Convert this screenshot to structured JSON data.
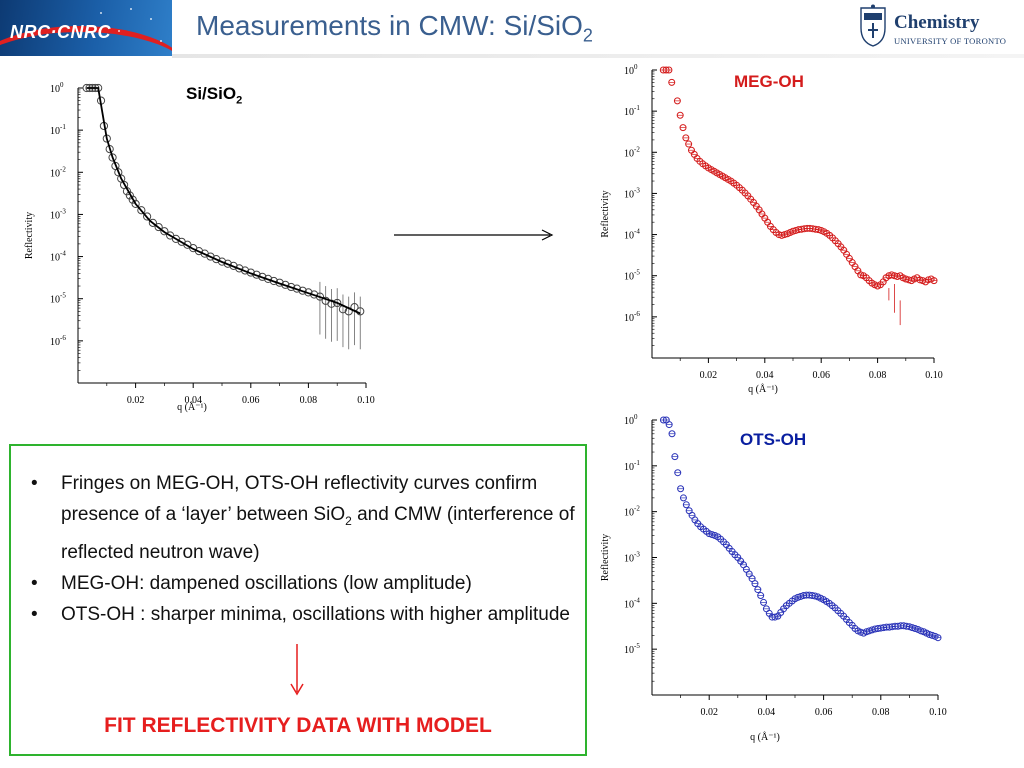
{
  "slide": {
    "title_main": "Measurements in CMW: Si/SiO",
    "title_sub": "2",
    "logo_left_text": "NRC·CNRC",
    "logo_right_title": "Chemistry",
    "logo_right_subtitle": "UNIVERSITY OF TORONTO"
  },
  "labels": {
    "sisio2_main": "Si/SiO",
    "sisio2_sub": "2",
    "meg_oh": "MEG-OH",
    "ots_oh": "OTS-OH"
  },
  "colors": {
    "title": "#3a5f8f",
    "meg": "#d41c1c",
    "ots": "#0a1fa0",
    "box_border": "#2eb32e",
    "conclusion": "#e61e1e"
  },
  "textbox": {
    "bullet_symbol": "•",
    "bullets": [
      {
        "pre": "Fringes on MEG-OH, OTS-OH reflectivity curves confirm presence of a ‘layer’ between SiO",
        "sub": "2",
        "post": " and CMW (interference of reflected neutron wave)"
      },
      {
        "pre": "MEG-OH: dampened oscillations (low amplitude)",
        "sub": "",
        "post": ""
      },
      {
        "pre": "OTS-OH : sharper minima, oscillations with higher amplitude",
        "sub": "",
        "post": ""
      }
    ],
    "conclusion": "FIT REFLECTIVITY DATA WITH MODEL"
  },
  "chart_data": [
    {
      "type": "scatter",
      "name": "Si/SiO2",
      "xlabel": "q (Å⁻¹)",
      "ylabel": "Reflectivity",
      "xlim": [
        0.0,
        0.1
      ],
      "ylog": true,
      "ytick_labels": [
        "10^0",
        "10^-1",
        "10^-2",
        "10^-3",
        "10^-4",
        "10^-5",
        "10^-6"
      ],
      "xtick_labels": [
        "0.02",
        "0.04",
        "0.06",
        "0.08",
        "0.10"
      ],
      "marker_color": "#444444",
      "fit_line": true,
      "series_q": [
        0.003,
        0.004,
        0.005,
        0.006,
        0.007,
        0.008,
        0.009,
        0.01,
        0.011,
        0.012,
        0.013,
        0.014,
        0.015,
        0.016,
        0.017,
        0.018,
        0.019,
        0.02,
        0.022,
        0.024,
        0.026,
        0.028,
        0.03,
        0.032,
        0.034,
        0.036,
        0.038,
        0.04,
        0.042,
        0.044,
        0.046,
        0.048,
        0.05,
        0.052,
        0.054,
        0.056,
        0.058,
        0.06,
        0.062,
        0.064,
        0.066,
        0.068,
        0.07,
        0.072,
        0.074,
        0.076,
        0.078,
        0.08,
        0.082,
        0.084,
        0.086,
        0.088,
        0.09,
        0.092,
        0.094,
        0.096,
        0.098
      ],
      "series_logR": [
        0.0,
        0.0,
        0.0,
        0.0,
        0.0,
        -0.3,
        -0.9,
        -1.2,
        -1.45,
        -1.65,
        -1.85,
        -2.0,
        -2.15,
        -2.3,
        -2.45,
        -2.55,
        -2.65,
        -2.75,
        -2.9,
        -3.05,
        -3.2,
        -3.3,
        -3.4,
        -3.5,
        -3.58,
        -3.65,
        -3.72,
        -3.8,
        -3.87,
        -3.93,
        -4.0,
        -4.06,
        -4.12,
        -4.17,
        -4.22,
        -4.28,
        -4.33,
        -4.38,
        -4.43,
        -4.48,
        -4.53,
        -4.58,
        -4.62,
        -4.67,
        -4.72,
        -4.76,
        -4.81,
        -4.85,
        -4.9,
        -4.95,
        -5.05,
        -5.12,
        -5.1,
        -5.25,
        -5.3,
        -5.2,
        -5.3
      ],
      "fit_q": [
        0.003,
        0.007,
        0.0085,
        0.01,
        0.012,
        0.015,
        0.02,
        0.025,
        0.03,
        0.04,
        0.05,
        0.06,
        0.07,
        0.08,
        0.09,
        0.098
      ],
      "fit_logR": [
        0.0,
        0.0,
        -0.6,
        -1.2,
        -1.65,
        -2.15,
        -2.75,
        -3.15,
        -3.42,
        -3.82,
        -4.13,
        -4.4,
        -4.64,
        -4.87,
        -5.1,
        -5.35
      ]
    },
    {
      "type": "scatter",
      "name": "MEG-OH",
      "xlabel": "q (Å⁻¹)",
      "ylabel": "Reflectivity",
      "xlim": [
        0.0,
        0.1
      ],
      "ylog": true,
      "ytick_labels": [
        "10^0",
        "10^-1",
        "10^-2",
        "10^-3",
        "10^-4",
        "10^-5",
        "10^-6"
      ],
      "xtick_labels": [
        "0.02",
        "0.04",
        "0.06",
        "0.08",
        "0.10"
      ],
      "marker_color": "#d41c1c",
      "series_q": [
        0.004,
        0.005,
        0.006,
        0.007,
        0.009,
        0.01,
        0.011,
        0.012,
        0.013,
        0.014,
        0.015,
        0.016,
        0.017,
        0.018,
        0.019,
        0.02,
        0.021,
        0.022,
        0.023,
        0.024,
        0.025,
        0.026,
        0.027,
        0.028,
        0.029,
        0.03,
        0.031,
        0.032,
        0.033,
        0.034,
        0.035,
        0.036,
        0.037,
        0.038,
        0.039,
        0.04,
        0.041,
        0.042,
        0.043,
        0.044,
        0.045,
        0.046,
        0.047,
        0.048,
        0.049,
        0.05,
        0.051,
        0.052,
        0.053,
        0.054,
        0.055,
        0.056,
        0.057,
        0.058,
        0.059,
        0.06,
        0.061,
        0.062,
        0.063,
        0.064,
        0.065,
        0.066,
        0.067,
        0.068,
        0.069,
        0.07,
        0.071,
        0.072,
        0.073,
        0.074,
        0.075,
        0.076,
        0.077,
        0.078,
        0.079,
        0.08,
        0.081,
        0.082,
        0.083,
        0.084,
        0.085,
        0.086,
        0.087,
        0.088,
        0.089,
        0.09,
        0.091,
        0.092,
        0.093,
        0.094,
        0.095,
        0.096,
        0.097,
        0.098,
        0.099,
        0.1
      ],
      "series_logR": [
        0.0,
        0.0,
        0.0,
        -0.3,
        -0.75,
        -1.1,
        -1.4,
        -1.65,
        -1.8,
        -1.95,
        -2.05,
        -2.15,
        -2.22,
        -2.28,
        -2.33,
        -2.38,
        -2.42,
        -2.46,
        -2.5,
        -2.54,
        -2.58,
        -2.62,
        -2.66,
        -2.7,
        -2.75,
        -2.8,
        -2.86,
        -2.92,
        -2.99,
        -3.06,
        -3.14,
        -3.22,
        -3.31,
        -3.4,
        -3.5,
        -3.6,
        -3.7,
        -3.8,
        -3.88,
        -3.95,
        -4.0,
        -4.02,
        -4.0,
        -3.98,
        -3.95,
        -3.92,
        -3.9,
        -3.88,
        -3.87,
        -3.86,
        -3.85,
        -3.85,
        -3.86,
        -3.87,
        -3.88,
        -3.9,
        -3.93,
        -3.97,
        -4.02,
        -4.08,
        -4.15,
        -4.22,
        -4.3,
        -4.38,
        -4.48,
        -4.58,
        -4.68,
        -4.78,
        -4.88,
        -4.98,
        -5.0,
        -5.05,
        -5.12,
        -5.18,
        -5.22,
        -5.25,
        -5.22,
        -5.15,
        -5.05,
        -5.0,
        -4.98,
        -5.0,
        -5.02,
        -5.0,
        -5.05,
        -5.08,
        -5.1,
        -5.12,
        -5.08,
        -5.05,
        -5.1,
        -5.12,
        -5.15,
        -5.1,
        -5.08,
        -5.12
      ],
      "error_bars": [
        {
          "q": 0.084,
          "lo": -5.6,
          "hi": -5.3
        },
        {
          "q": 0.088,
          "lo": -6.2,
          "hi": -5.6
        },
        {
          "q": 0.086,
          "lo": -5.9,
          "hi": -5.2
        }
      ]
    },
    {
      "type": "scatter",
      "name": "OTS-OH",
      "xlabel": "q (Å⁻¹)",
      "ylabel": "Reflectivity",
      "xlim": [
        0.0,
        0.1
      ],
      "ylog": true,
      "ytick_labels": [
        "10^0",
        "10^-1",
        "10^-2",
        "10^-3",
        "10^-4",
        "10^-5"
      ],
      "xtick_labels": [
        "0.02",
        "0.04",
        "0.06",
        "0.08",
        "0.10"
      ],
      "marker_color": "#2a33b8",
      "series_q": [
        0.004,
        0.005,
        0.006,
        0.007,
        0.008,
        0.009,
        0.01,
        0.011,
        0.012,
        0.013,
        0.014,
        0.015,
        0.016,
        0.017,
        0.018,
        0.019,
        0.02,
        0.021,
        0.022,
        0.023,
        0.024,
        0.025,
        0.026,
        0.027,
        0.028,
        0.029,
        0.03,
        0.031,
        0.032,
        0.033,
        0.034,
        0.035,
        0.036,
        0.037,
        0.038,
        0.039,
        0.04,
        0.041,
        0.042,
        0.043,
        0.044,
        0.045,
        0.046,
        0.047,
        0.048,
        0.049,
        0.05,
        0.051,
        0.052,
        0.053,
        0.054,
        0.055,
        0.056,
        0.057,
        0.058,
        0.059,
        0.06,
        0.061,
        0.062,
        0.063,
        0.064,
        0.065,
        0.066,
        0.067,
        0.068,
        0.069,
        0.07,
        0.071,
        0.072,
        0.073,
        0.074,
        0.075,
        0.076,
        0.077,
        0.078,
        0.079,
        0.08,
        0.081,
        0.082,
        0.083,
        0.084,
        0.085,
        0.086,
        0.087,
        0.088,
        0.089,
        0.09,
        0.091,
        0.092,
        0.093,
        0.094,
        0.095,
        0.096,
        0.097,
        0.098,
        0.099,
        0.1
      ],
      "series_logR": [
        0.0,
        0.0,
        -0.1,
        -0.3,
        -0.8,
        -1.15,
        -1.5,
        -1.7,
        -1.85,
        -1.98,
        -2.08,
        -2.18,
        -2.26,
        -2.33,
        -2.38,
        -2.43,
        -2.48,
        -2.5,
        -2.52,
        -2.55,
        -2.6,
        -2.66,
        -2.72,
        -2.8,
        -2.87,
        -2.94,
        -3.0,
        -3.08,
        -3.16,
        -3.26,
        -3.36,
        -3.46,
        -3.57,
        -3.7,
        -3.83,
        -3.98,
        -4.12,
        -4.22,
        -4.3,
        -4.3,
        -4.28,
        -4.2,
        -4.12,
        -4.05,
        -4.0,
        -3.95,
        -3.9,
        -3.87,
        -3.85,
        -3.83,
        -3.82,
        -3.82,
        -3.83,
        -3.84,
        -3.86,
        -3.89,
        -3.92,
        -3.96,
        -4.0,
        -4.05,
        -4.1,
        -4.16,
        -4.22,
        -4.28,
        -4.35,
        -4.42,
        -4.48,
        -4.55,
        -4.6,
        -4.63,
        -4.65,
        -4.62,
        -4.6,
        -4.58,
        -4.56,
        -4.55,
        -4.54,
        -4.53,
        -4.52,
        -4.52,
        -4.51,
        -4.5,
        -4.5,
        -4.49,
        -4.49,
        -4.5,
        -4.51,
        -4.53,
        -4.55,
        -4.57,
        -4.6,
        -4.62,
        -4.65,
        -4.68,
        -4.7,
        -4.72,
        -4.75
      ]
    }
  ]
}
